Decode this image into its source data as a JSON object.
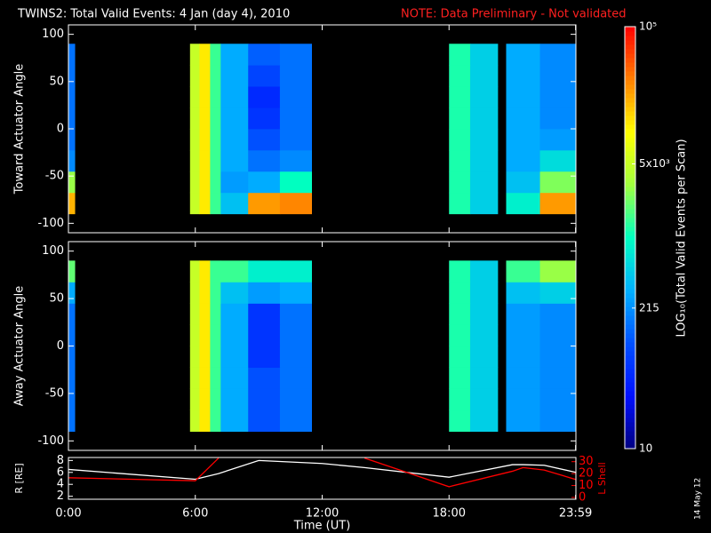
{
  "title": "TWINS2: Total Valid Events:  4 Jan (day   4), 2010",
  "note": "NOTE: Data Preliminary - Not validated",
  "footer": "14 May 12",
  "colorbar": {
    "label": "LOG₁₀(Total Valid Events per Scan)",
    "lim": [
      10,
      100000
    ],
    "log": true,
    "ticks": [
      10,
      215,
      {
        "value": 5000,
        "label": "5x10³"
      },
      {
        "value": 100000,
        "label": "10⁵"
      }
    ],
    "colormap": [
      "#000080",
      "#0010ff",
      "#0050ff",
      "#00b0ff",
      "#00ffc0",
      "#a0ff40",
      "#ffff00",
      "#ff8000",
      "#ff0000"
    ]
  },
  "chart_data": [
    {
      "type": "heatmap",
      "ylabel": "Toward Actuator Angle",
      "x_bins": [
        0,
        0.3,
        5.75,
        6.2,
        6.7,
        7.2,
        8.5,
        10,
        11.5,
        18,
        19,
        20.3,
        20.7,
        22.3,
        24
      ],
      "y_bins": [
        -90,
        -67.5,
        -45,
        -22.5,
        0,
        22.5,
        45,
        67.5,
        90
      ],
      "values": [
        [
          20000,
          null,
          5000,
          12000,
          1500,
          400,
          25000,
          30000,
          null,
          1200,
          500,
          null,
          800,
          25000
        ],
        [
          3000,
          null,
          5000,
          12000,
          1500,
          250,
          300,
          1000,
          null,
          1200,
          500,
          null,
          400,
          2500
        ],
        [
          200,
          null,
          5000,
          12000,
          1500,
          300,
          150,
          200,
          null,
          1200,
          500,
          null,
          300,
          600
        ],
        [
          150,
          null,
          5000,
          12000,
          1500,
          300,
          100,
          150,
          null,
          1200,
          500,
          null,
          300,
          250
        ],
        [
          150,
          null,
          5000,
          12000,
          1500,
          300,
          60,
          150,
          null,
          1200,
          500,
          null,
          300,
          200
        ],
        [
          150,
          null,
          5000,
          12000,
          1500,
          300,
          50,
          150,
          null,
          1200,
          500,
          null,
          300,
          200
        ],
        [
          150,
          null,
          5000,
          12000,
          1500,
          300,
          80,
          150,
          null,
          1200,
          500,
          null,
          300,
          200
        ],
        [
          150,
          null,
          5000,
          12000,
          1500,
          300,
          120,
          150,
          null,
          1200,
          500,
          null,
          300,
          200
        ]
      ],
      "xlim": [
        0,
        24
      ],
      "ylim": [
        -110,
        110
      ],
      "yticks": [
        -100,
        -50,
        0,
        50,
        100
      ]
    },
    {
      "type": "heatmap",
      "ylabel": "Away Actuator Angle",
      "x_bins": [
        0,
        0.3,
        5.75,
        6.2,
        6.7,
        7.2,
        8.5,
        10,
        11.5,
        18,
        19,
        20.3,
        20.7,
        22.3,
        24
      ],
      "y_bins": [
        -90,
        -67.5,
        -45,
        -22.5,
        0,
        22.5,
        45,
        67.5,
        90
      ],
      "values": [
        [
          150,
          null,
          5000,
          12000,
          1500,
          300,
          100,
          150,
          null,
          1200,
          500,
          null,
          250,
          200
        ],
        [
          150,
          null,
          5000,
          12000,
          1500,
          300,
          100,
          150,
          null,
          1200,
          500,
          null,
          250,
          200
        ],
        [
          150,
          null,
          5000,
          12000,
          1500,
          300,
          100,
          150,
          null,
          1200,
          500,
          null,
          250,
          200
        ],
        [
          150,
          null,
          5000,
          12000,
          1500,
          300,
          60,
          150,
          null,
          1200,
          500,
          null,
          250,
          200
        ],
        [
          150,
          null,
          5000,
          12000,
          1500,
          300,
          60,
          150,
          null,
          1200,
          500,
          null,
          250,
          200
        ],
        [
          150,
          null,
          5000,
          12000,
          1500,
          300,
          60,
          150,
          null,
          1200,
          500,
          null,
          250,
          200
        ],
        [
          300,
          null,
          5000,
          12000,
          1500,
          400,
          250,
          300,
          null,
          1200,
          500,
          null,
          400,
          500
        ],
        [
          2000,
          null,
          5000,
          12000,
          1500,
          1500,
          800,
          800,
          null,
          1200,
          500,
          null,
          1500,
          3000
        ]
      ],
      "xlim": [
        0,
        24
      ],
      "ylim": [
        -110,
        110
      ],
      "yticks": [
        -100,
        -50,
        0,
        50,
        100
      ]
    },
    {
      "type": "line",
      "ylabel": "R [RE]",
      "y2label": "L Shell",
      "xlabel": "Time (UT)",
      "x": [
        0,
        6,
        7.1,
        9,
        12,
        14,
        18,
        21,
        21.5,
        22.5,
        24
      ],
      "series": [
        {
          "color": "#ffffff",
          "values": [
            6.5,
            4.85,
            5.8,
            8,
            7.5,
            6.8,
            5.2,
            7.3,
            7.3,
            7.2,
            6
          ]
        },
        {
          "color": "#ff0000",
          "axis": "y2",
          "values": [
            16.5,
            14,
            33,
            null,
            null,
            33,
            9,
            22,
            25,
            23,
            15
          ]
        }
      ],
      "xlim": [
        0,
        24
      ],
      "xticks": [
        {
          "value": 0,
          "label": "0:00"
        },
        {
          "value": 6,
          "label": "6:00"
        },
        {
          "value": 12,
          "label": "12:00"
        },
        {
          "value": 18,
          "label": "18:00"
        },
        {
          "value": 23.983,
          "label": "23:59"
        }
      ],
      "ylim": [
        1.5,
        8.5
      ],
      "yticks": [
        2,
        4,
        6,
        8
      ],
      "y2lim": [
        -1.5,
        33.5
      ],
      "y2ticks": [
        0,
        10,
        20,
        30
      ],
      "y2color": "#ff0000"
    }
  ]
}
